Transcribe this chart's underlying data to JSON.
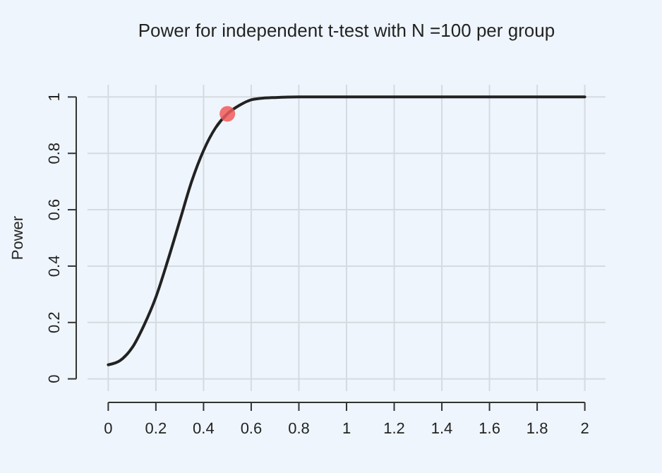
{
  "chart_data": {
    "type": "line",
    "title": "Power for independent t-test with N =100 per group",
    "ylabel": "Power",
    "series": [
      {
        "color": "#222222",
        "marker": "none",
        "x": [
          0,
          0.05,
          0.1,
          0.15,
          0.2,
          0.25,
          0.3,
          0.35,
          0.4,
          0.45,
          0.5,
          0.55,
          0.6,
          0.65,
          0.7,
          0.8,
          1,
          1.5,
          2
        ],
        "values": [
          0.05,
          0.065,
          0.11,
          0.19,
          0.29,
          0.42,
          0.56,
          0.7,
          0.81,
          0.89,
          0.94,
          0.97,
          0.99,
          0.996,
          0.998,
          1,
          1,
          1,
          1
        ]
      },
      {
        "type": "scatter",
        "marker": "circle",
        "color": "#f05a5a",
        "x": [
          0.5
        ],
        "values": [
          0.94
        ]
      }
    ],
    "xlim": [
      0,
      2
    ],
    "ylim": [
      0,
      1
    ],
    "xticks": [
      0,
      0.2,
      0.4,
      0.6,
      0.8,
      1,
      1.2,
      1.4,
      1.6,
      1.8,
      2
    ],
    "yticks": [
      0,
      0.2,
      0.4,
      0.6,
      0.8,
      1
    ],
    "grid": true,
    "line_style": "solid"
  }
}
